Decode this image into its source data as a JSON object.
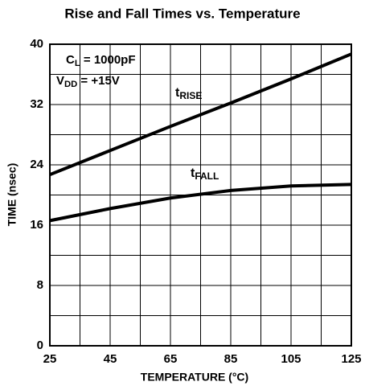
{
  "chart_data": {
    "type": "line",
    "title": "Rise and Fall Times vs. Temperature",
    "x_label": "TEMPERATURE (°C)",
    "y_label": "TIME (nsec)",
    "x": [
      25,
      45,
      65,
      85,
      105,
      125
    ],
    "series": [
      {
        "name": "t",
        "name_sub": "RISE",
        "color": "#000000",
        "values": [
          22.7,
          25.9,
          29.1,
          32.2,
          35.4,
          38.7
        ]
      },
      {
        "name": "t",
        "name_sub": "FALL",
        "color": "#000000",
        "values": [
          16.6,
          18.2,
          19.6,
          20.6,
          21.2,
          21.4
        ]
      }
    ],
    "annotations": [
      {
        "main": "C",
        "sub": "L",
        "rest": " = 1000pF"
      },
      {
        "main": "V",
        "sub": "DD",
        "rest": " = +15V"
      }
    ],
    "xlim": [
      25,
      125
    ],
    "xticks": [
      25,
      45,
      65,
      85,
      105,
      125
    ],
    "ylim": [
      0,
      40
    ],
    "yticks": [
      0,
      8,
      16,
      24,
      32,
      40
    ],
    "grid": true
  }
}
